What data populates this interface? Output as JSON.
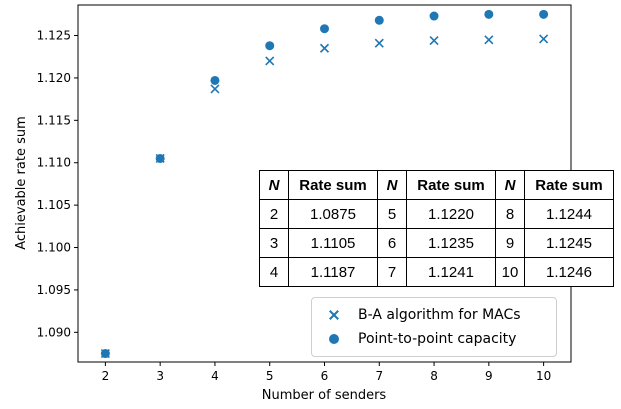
{
  "chart_data": {
    "type": "scatter",
    "xlabel": "Number of senders",
    "ylabel": "Achievable rate sum",
    "xlim": [
      1.5,
      10.5
    ],
    "ylim": [
      1.0865,
      1.1286
    ],
    "x_ticks": [
      "2",
      "3",
      "4",
      "5",
      "6",
      "7",
      "8",
      "9",
      "10"
    ],
    "y_ticks": [
      "1.090",
      "1.095",
      "1.100",
      "1.105",
      "1.110",
      "1.115",
      "1.120",
      "1.125"
    ],
    "y_tick_values": [
      1.09,
      1.095,
      1.1,
      1.105,
      1.11,
      1.115,
      1.12,
      1.125
    ],
    "legend_position": "lower-right",
    "series": [
      {
        "name": "B-A algorithm for MACs",
        "marker": "x",
        "color": "#1f77b4",
        "x": [
          2,
          3,
          4,
          5,
          6,
          7,
          8,
          9,
          10
        ],
        "y": [
          1.0875,
          1.1105,
          1.1187,
          1.122,
          1.1235,
          1.1241,
          1.1244,
          1.1245,
          1.1246
        ]
      },
      {
        "name": "Point-to-point capacity",
        "marker": "o",
        "color": "#1f77b4",
        "x": [
          2,
          3,
          4,
          5,
          6,
          7,
          8,
          9,
          10
        ],
        "y": [
          1.0875,
          1.1105,
          1.1197,
          1.1238,
          1.1258,
          1.1268,
          1.1273,
          1.1275,
          1.1275
        ]
      }
    ],
    "table": {
      "headers": [
        "N",
        "Rate sum",
        "N",
        "Rate sum",
        "N",
        "Rate sum"
      ],
      "rows": [
        [
          "2",
          "1.0875",
          "5",
          "1.1220",
          "8",
          "1.1244"
        ],
        [
          "3",
          "1.1105",
          "6",
          "1.1235",
          "9",
          "1.1245"
        ],
        [
          "4",
          "1.1187",
          "7",
          "1.1241",
          "10",
          "1.1246"
        ]
      ]
    }
  }
}
